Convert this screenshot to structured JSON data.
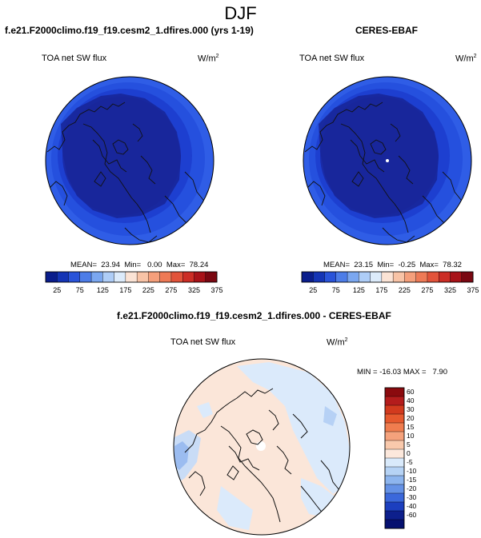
{
  "figure": {
    "season": "DJF"
  },
  "panels": [
    {
      "title": "f.e21.F2000climo.f19_f19.cesm2_1.dfires.000 (yrs 1-19)",
      "variable": "TOA net SW flux",
      "units": "W/m",
      "units_exp": "2",
      "stats": "MEAN=  23.94  Min=   0.00  Max=  78.24"
    },
    {
      "title": "CERES-EBAF",
      "variable": "TOA net SW flux",
      "units": "W/m",
      "units_exp": "2",
      "stats": "MEAN=  23.15  Min=  -0.25  Max=  78.32"
    },
    {
      "title": "f.e21.F2000climo.f19_f19.cesm2_1.dfires.000 - CERES-EBAF",
      "variable": "TOA net SW flux",
      "units": "W/m",
      "units_exp": "2",
      "stats": "MIN = -16.03 MAX =   7.90"
    }
  ],
  "chart_data": [
    {
      "type": "heatmap",
      "projection": "north-polar-stereographic",
      "title": "f.e21.F2000climo.f19_f19.cesm2_1.dfires.000 (yrs 1-19)",
      "variable": "TOA net SW flux",
      "units": "W/m2",
      "mean": 23.94,
      "min": 0.0,
      "max": 78.24,
      "colorbar": {
        "orientation": "horizontal",
        "labels": [
          "25",
          "75",
          "125",
          "175",
          "225",
          "275",
          "325",
          "375"
        ],
        "colors": [
          "#0a1d8c",
          "#1434b5",
          "#2953d9",
          "#4d7de8",
          "#7ba7f0",
          "#aecdf7",
          "#dcebfb",
          "#fbe3d5",
          "#f8c3a6",
          "#f59f7b",
          "#ee7a56",
          "#e2533a",
          "#cc2d25",
          "#a81218",
          "#7a0711"
        ]
      }
    },
    {
      "type": "heatmap",
      "projection": "north-polar-stereographic",
      "title": "CERES-EBAF",
      "variable": "TOA net SW flux",
      "units": "W/m2",
      "mean": 23.15,
      "min": -0.25,
      "max": 78.32,
      "colorbar": {
        "orientation": "horizontal",
        "labels": [
          "25",
          "75",
          "125",
          "175",
          "225",
          "275",
          "325",
          "375"
        ],
        "colors": [
          "#0a1d8c",
          "#1434b5",
          "#2953d9",
          "#4d7de8",
          "#7ba7f0",
          "#aecdf7",
          "#dcebfb",
          "#fbe3d5",
          "#f8c3a6",
          "#f59f7b",
          "#ee7a56",
          "#e2533a",
          "#cc2d25",
          "#a81218",
          "#7a0711"
        ]
      }
    },
    {
      "type": "heatmap",
      "projection": "north-polar-stereographic",
      "title": "f.e21.F2000climo.f19_f19.cesm2_1.dfires.000 - CERES-EBAF",
      "variable": "TOA net SW flux",
      "units": "W/m2",
      "min": -16.03,
      "max": 7.9,
      "colorbar": {
        "orientation": "vertical",
        "labels": [
          "60",
          "40",
          "30",
          "20",
          "15",
          "10",
          "5",
          "0",
          "-5",
          "-10",
          "-15",
          "-20",
          "-30",
          "-40",
          "-60"
        ],
        "colors": [
          "#8b0a0e",
          "#b41c1c",
          "#d23a1e",
          "#e6592e",
          "#f07d4f",
          "#f5a27c",
          "#f9c9ac",
          "#fce8dc",
          "#d9eafb",
          "#b6d3f5",
          "#8db5ee",
          "#6592e6",
          "#3b68db",
          "#1c3fbf",
          "#0d1f8c",
          "#051070"
        ]
      }
    }
  ]
}
